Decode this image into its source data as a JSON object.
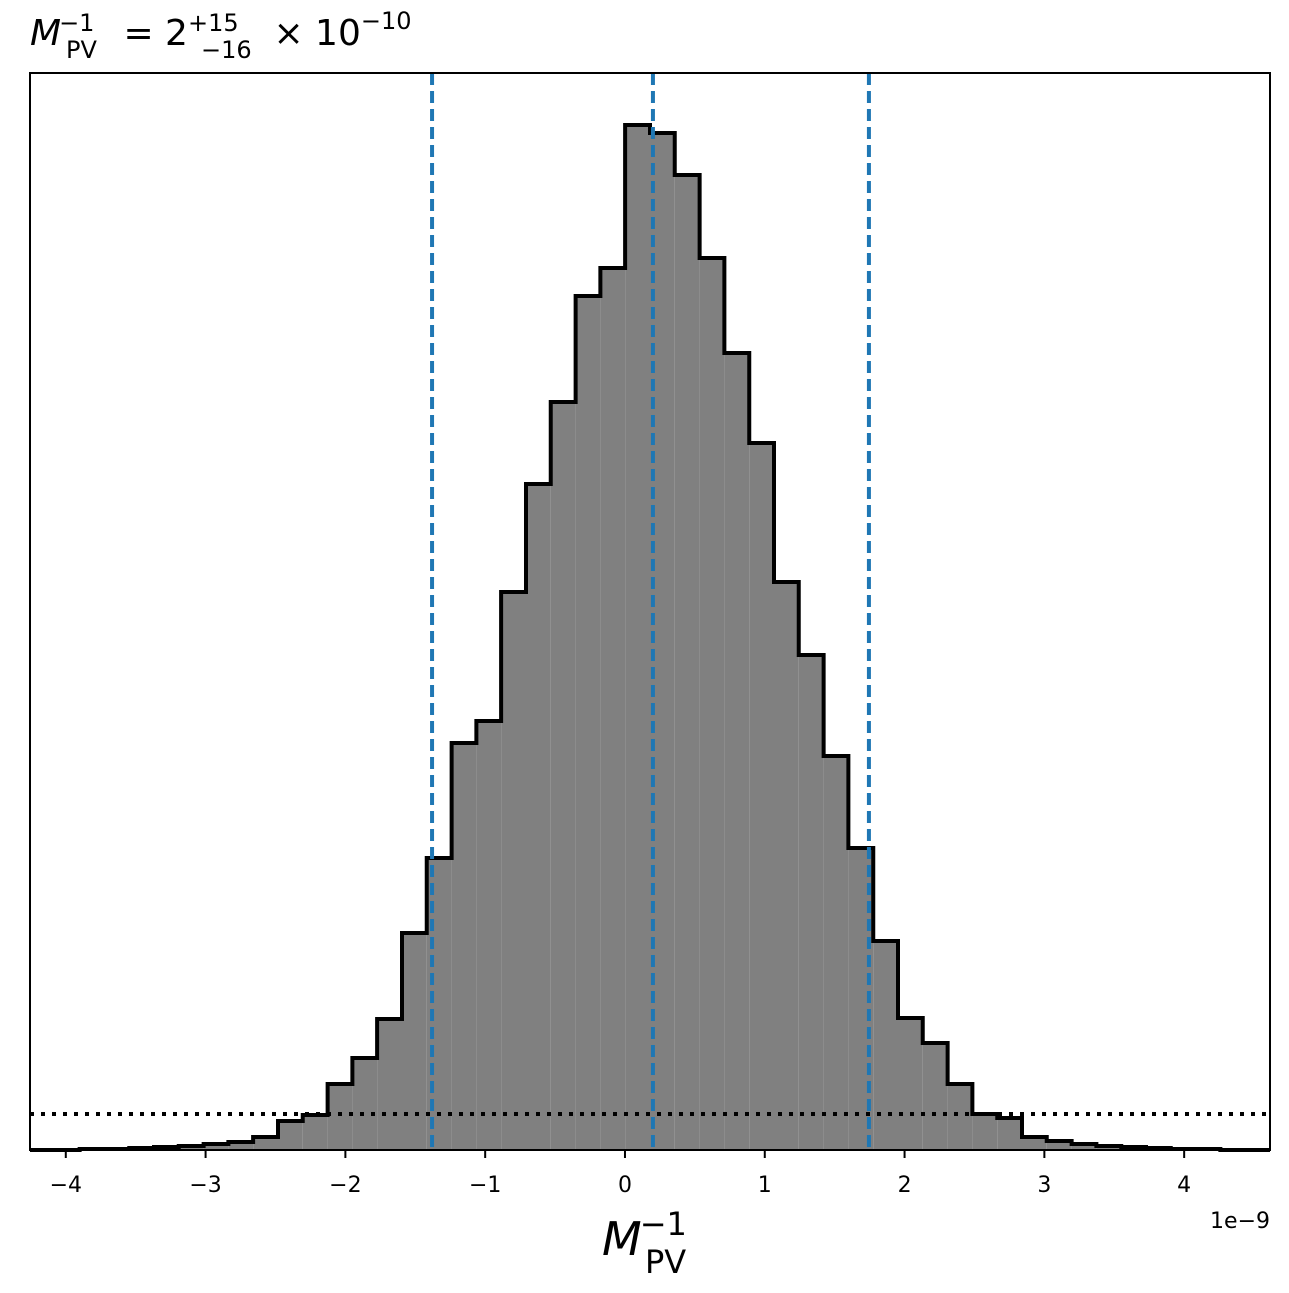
{
  "chart_data": {
    "type": "histogram",
    "title": {
      "symbol": "M",
      "sub": "PV",
      "sup": "−1",
      "eq": " = 2",
      "upper": "+15",
      "lower": "−16",
      "times": " × 10",
      "exp": "−10"
    },
    "xlabel": {
      "symbol": "M",
      "sub": "PV",
      "sup": "−1"
    },
    "x_offset_label": "1e−9",
    "bins": [
      -4.256,
      -4.079,
      -3.901,
      -3.724,
      -3.546,
      -3.369,
      -3.192,
      -3.014,
      -2.837,
      -2.66,
      -2.482,
      -2.305,
      -2.127,
      -1.95,
      -1.773,
      -1.595,
      -1.418,
      -1.24,
      -1.063,
      -0.886,
      -0.708,
      -0.531,
      -0.353,
      -0.176,
      0.001,
      0.179,
      0.356,
      0.534,
      0.711,
      0.889,
      1.066,
      1.243,
      1.421,
      1.598,
      1.776,
      1.953,
      2.13,
      2.308,
      2.485,
      2.663,
      2.84,
      3.017,
      3.195,
      3.372,
      3.55,
      3.727,
      3.904,
      4.082,
      4.259,
      4.437,
      4.614
    ],
    "values": [
      0,
      0,
      1,
      1,
      2,
      3,
      4,
      6,
      8,
      13,
      29,
      35,
      66,
      92,
      131,
      217,
      292,
      407,
      429,
      558,
      666,
      748,
      854,
      882,
      1025,
      1017,
      975,
      892,
      797,
      707,
      568,
      495,
      394,
      302,
      209,
      132,
      107,
      66,
      36,
      32,
      13,
      9,
      6,
      4,
      3,
      2,
      1,
      1,
      0,
      0
    ],
    "color": "#808080",
    "edge_color": "#000000",
    "xlim": [
      -4.256,
      4.614
    ],
    "ylim": [
      0,
      1077
    ],
    "xticks": [
      {
        "value": -4,
        "label": "−4"
      },
      {
        "value": -3,
        "label": "−3"
      },
      {
        "value": -2,
        "label": "−2"
      },
      {
        "value": -1,
        "label": "−1"
      },
      0,
      1,
      2,
      3,
      4
    ],
    "vlines": [
      -1.38,
      0.2,
      1.745
    ],
    "vline_color": "#1f77b4",
    "hline": 36,
    "hline_color": "#000000"
  }
}
